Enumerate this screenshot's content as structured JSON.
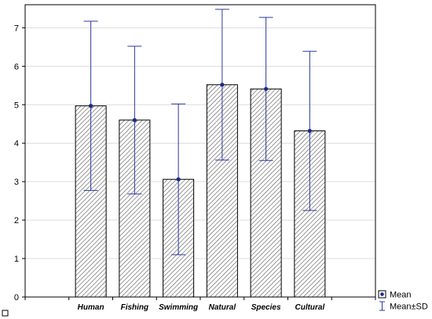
{
  "chart_data": {
    "type": "bar",
    "categories": [
      "Human",
      "Fishing",
      "Swimming",
      "Natural",
      "Species",
      "Cultural"
    ],
    "series": [
      {
        "name": "Mean",
        "values": [
          4.97,
          4.6,
          3.06,
          5.52,
          5.41,
          4.32
        ],
        "sd": [
          2.2,
          1.92,
          1.96,
          1.96,
          1.86,
          2.07
        ]
      }
    ],
    "x_category_range": [
      -1.5,
      6.5
    ],
    "ylim": [
      0,
      7.6
    ],
    "yticks": [
      0,
      1,
      2,
      3,
      4,
      5,
      6,
      7
    ],
    "grid": "horizontal",
    "bar_style": "diagonal-hatch",
    "colors": {
      "bar_stroke": "#000000",
      "hatch": "#555555",
      "error": "#2b3aa0",
      "marker": "#1a2a8a",
      "grid": "#dcdcdc"
    },
    "legend": {
      "placement": "bottom-right",
      "entries": [
        "Mean",
        "Mean±SD"
      ]
    }
  }
}
